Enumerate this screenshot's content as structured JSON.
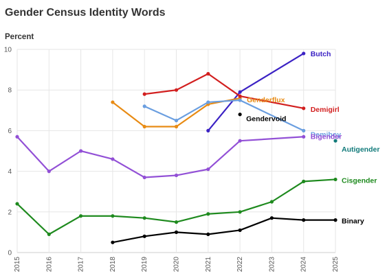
{
  "chart_data": {
    "type": "line",
    "title": "Gender Census Identity Words",
    "xlabel": "",
    "ylabel": "Percent",
    "xlim": [
      2015,
      2025
    ],
    "ylim": [
      0,
      10
    ],
    "x_ticks": [
      "2015",
      "2016",
      "2017",
      "2018",
      "2019",
      "2020",
      "2021",
      "2022",
      "2023",
      "2024",
      "2025"
    ],
    "y_ticks": [
      "0",
      "2",
      "4",
      "6",
      "8",
      "10"
    ],
    "grid": true,
    "series": [
      {
        "name": "Butch",
        "color": "#3b22c4",
        "points": [
          [
            2021,
            6.0
          ],
          [
            2022,
            7.9
          ],
          [
            2024,
            9.8
          ]
        ]
      },
      {
        "name": "Genderflux",
        "color": "#e88b14",
        "points": [
          [
            2018,
            7.4
          ],
          [
            2019,
            6.2
          ],
          [
            2020,
            6.2
          ],
          [
            2021,
            7.3
          ],
          [
            2022,
            7.6
          ]
        ]
      },
      {
        "name": "Demigirl",
        "color": "#d21f1f",
        "points": [
          [
            2019,
            7.8
          ],
          [
            2020,
            8.0
          ],
          [
            2021,
            8.8
          ],
          [
            2022,
            7.7
          ],
          [
            2024,
            7.1
          ]
        ]
      },
      {
        "name": "Gendervoid",
        "color": "#000000",
        "points": [
          [
            2022,
            6.8
          ]
        ]
      },
      {
        "name": "Demiboy",
        "color": "#6a9ee0",
        "points": [
          [
            2019,
            7.2
          ],
          [
            2020,
            6.5
          ],
          [
            2021,
            7.4
          ],
          [
            2022,
            7.5
          ],
          [
            2024,
            6.0
          ]
        ]
      },
      {
        "name": "Bigender",
        "color": "#9250d6",
        "points": [
          [
            2015,
            5.7
          ],
          [
            2016,
            4.0
          ],
          [
            2017,
            5.0
          ],
          [
            2018,
            4.6
          ],
          [
            2019,
            3.7
          ],
          [
            2020,
            3.8
          ],
          [
            2021,
            4.1
          ],
          [
            2022,
            5.5
          ],
          [
            2024,
            5.7
          ]
        ]
      },
      {
        "name": "Autigender",
        "color": "#117a7a",
        "points": [
          [
            2025,
            5.5
          ]
        ]
      },
      {
        "name": "Cisgender",
        "color": "#1e8a1e",
        "points": [
          [
            2015,
            2.4
          ],
          [
            2016,
            0.9
          ],
          [
            2017,
            1.8
          ],
          [
            2018,
            1.8
          ],
          [
            2019,
            1.7
          ],
          [
            2020,
            1.5
          ],
          [
            2021,
            1.9
          ],
          [
            2022,
            2.0
          ],
          [
            2023,
            2.5
          ],
          [
            2024,
            3.5
          ],
          [
            2025,
            3.6
          ]
        ]
      },
      {
        "name": "Binary",
        "color": "#000000",
        "points": [
          [
            2018,
            0.5
          ],
          [
            2019,
            0.8
          ],
          [
            2020,
            1.0
          ],
          [
            2021,
            0.9
          ],
          [
            2022,
            1.1
          ],
          [
            2023,
            1.7
          ],
          [
            2024,
            1.6
          ],
          [
            2025,
            1.6
          ]
        ]
      }
    ]
  }
}
